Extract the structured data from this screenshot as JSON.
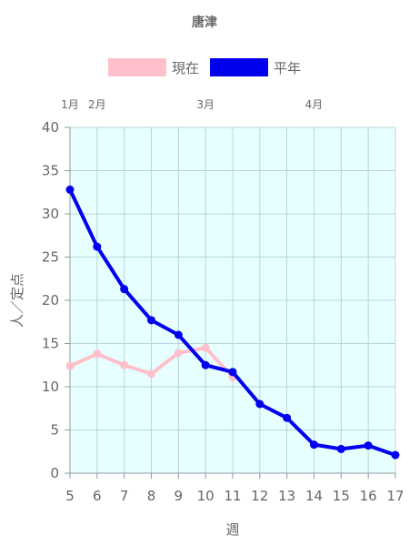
{
  "chart_data": {
    "type": "line",
    "title": "唐津",
    "xlabel": "週",
    "ylabel": "人／定点",
    "x": [
      5,
      6,
      7,
      8,
      9,
      10,
      11,
      12,
      13,
      14,
      15,
      16,
      17
    ],
    "ylim": [
      0,
      40
    ],
    "yticks": [
      0,
      5,
      10,
      15,
      20,
      25,
      30,
      35,
      40
    ],
    "month_markers": [
      {
        "label": "1月",
        "week": 5
      },
      {
        "label": "2月",
        "week": 6
      },
      {
        "label": "3月",
        "week": 10
      },
      {
        "label": "4月",
        "week": 14
      }
    ],
    "legend_position": "top-center",
    "grid": true,
    "plot_background": "#e8ffff",
    "series": [
      {
        "name": "現在",
        "color": "#ffc0cb",
        "values": [
          12.4,
          13.8,
          12.5,
          11.5,
          13.9,
          14.5,
          11.1,
          null,
          null,
          null,
          null,
          null,
          null
        ]
      },
      {
        "name": "平年",
        "color": "#0000ee",
        "values": [
          32.8,
          26.2,
          21.3,
          17.7,
          16.0,
          12.5,
          11.7,
          8.0,
          6.4,
          3.3,
          2.8,
          3.2,
          2.1
        ]
      }
    ]
  }
}
